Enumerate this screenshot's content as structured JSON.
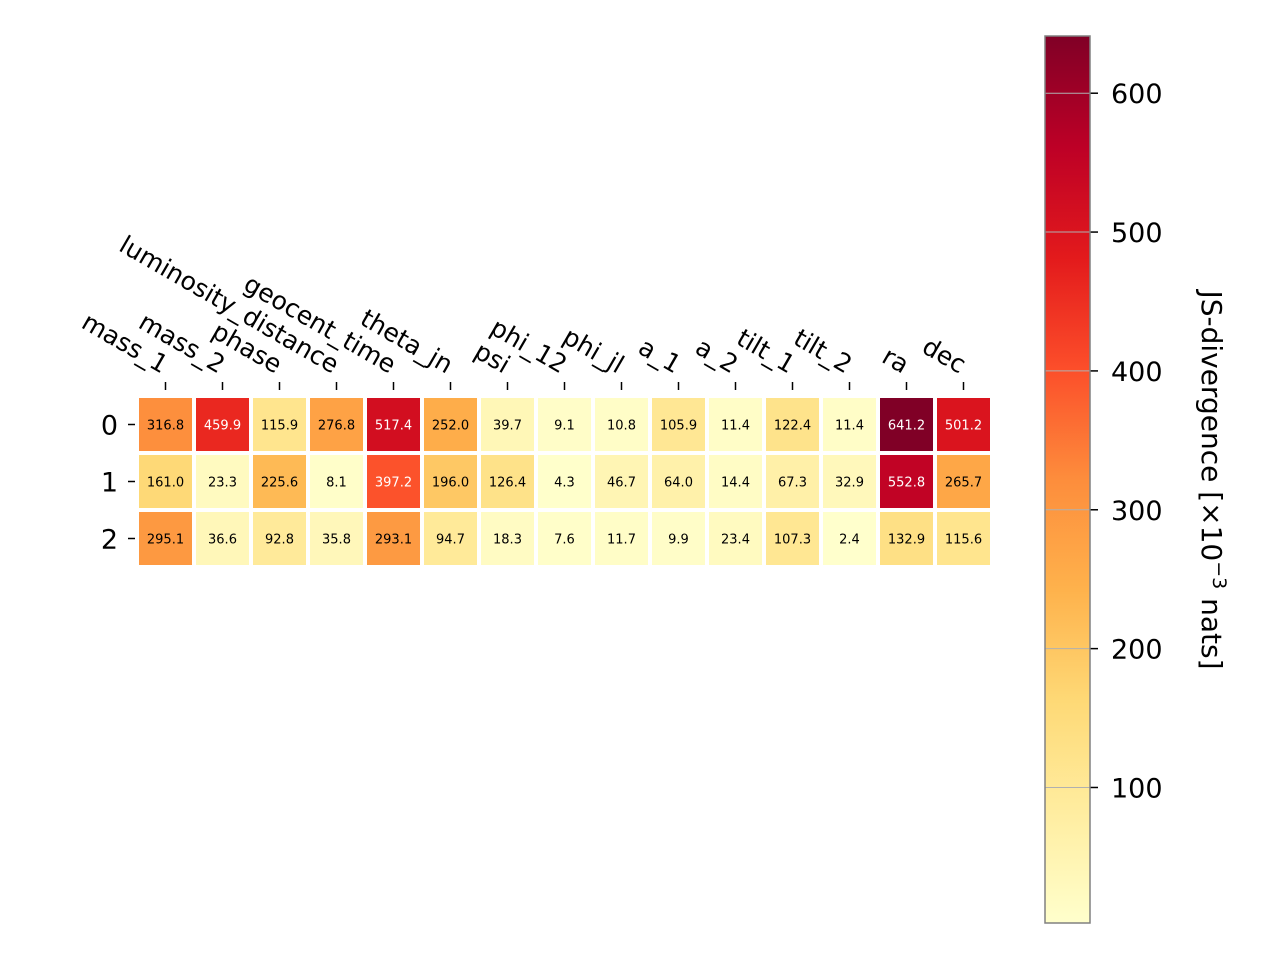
{
  "chart_data": {
    "type": "heatmap",
    "rows": [
      "0",
      "1",
      "2"
    ],
    "columns": [
      "mass_1",
      "mass_2",
      "phase",
      "luminosity_distance",
      "geocent_time",
      "theta_jn",
      "psi",
      "phi_12",
      "phi_jl",
      "a_1",
      "a_2",
      "tilt_1",
      "tilt_2",
      "ra",
      "dec"
    ],
    "values": [
      [
        316.8,
        459.9,
        115.9,
        276.8,
        517.4,
        252.0,
        39.7,
        9.1,
        10.8,
        105.9,
        11.4,
        122.4,
        11.4,
        641.2,
        501.2
      ],
      [
        161.0,
        23.3,
        225.6,
        8.1,
        397.2,
        196.0,
        126.4,
        4.3,
        46.7,
        64.0,
        14.4,
        67.3,
        32.9,
        552.8,
        265.7
      ],
      [
        295.1,
        36.6,
        92.8,
        35.8,
        293.1,
        94.7,
        18.3,
        7.6,
        11.7,
        9.9,
        23.4,
        107.3,
        2.4,
        132.9,
        115.6
      ]
    ],
    "cell_labels": [
      [
        "316.8",
        "459.9",
        "115.9",
        "276.8",
        "517.4",
        "252.0",
        "39.7",
        "9.1",
        "10.8",
        "105.9",
        "11.4",
        "122.4",
        "11.4",
        "641.2",
        "501.2"
      ],
      [
        "161.0",
        "23.3",
        "225.6",
        "8.1",
        "397.2",
        "196.0",
        "126.4",
        "4.3",
        "46.7",
        "64.0",
        "14.4",
        "67.3",
        "32.9",
        "552.8",
        "265.7"
      ],
      [
        "295.1",
        "36.6",
        "92.8",
        "35.8",
        "293.1",
        "94.7",
        "18.3",
        "7.6",
        "11.7",
        "9.9",
        "23.4",
        "107.3",
        "2.4",
        "132.9",
        "115.6"
      ]
    ],
    "colormap": "YlOrRd",
    "value_range": [
      2.4,
      641.2
    ],
    "colorbar": {
      "label_prefix": "JS-divergence [×10",
      "label_exponent": "−3",
      "label_suffix": " nats]",
      "ticks": [
        100,
        200,
        300,
        400,
        500,
        600
      ],
      "tick_labels": [
        "100",
        "200",
        "300",
        "400",
        "500",
        "600"
      ]
    },
    "xaxis_position": "top",
    "grid": false
  }
}
